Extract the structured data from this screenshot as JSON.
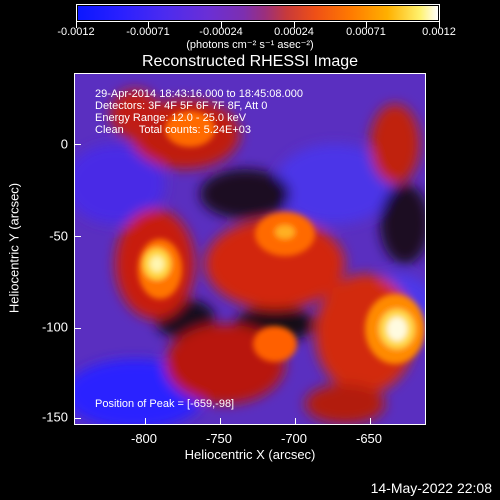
{
  "colorbar": {
    "ticks": [
      "-0.0012",
      "-0.00071",
      "-0.00024",
      "0.00024",
      "0.00071",
      "0.0012"
    ],
    "units": "(photons cm⁻² s⁻¹ asec⁻²)"
  },
  "title": "Reconstructed RHESSI Image",
  "info": {
    "time_range": "29-Apr-2014 18:43:16.000 to 18:45:08.000",
    "detectors": "Detectors: 3F 4F 5F 6F 7F 8F, Att 0",
    "energy": "Energy Range: 12.0 - 25.0 keV",
    "method": "Clean     Total counts: 5.24E+03",
    "peak": "Position of Peak = [-659,-98]"
  },
  "axes": {
    "xlabel": "Heliocentric X (arcsec)",
    "ylabel": "Heliocentric Y (arcsec)",
    "xticks": [
      "-800",
      "-750",
      "-700",
      "-650"
    ],
    "yticks": [
      "0",
      "-50",
      "-100",
      "-150"
    ]
  },
  "footer_date": "14-May-2022 22:08",
  "colors": {
    "background": "#000000",
    "text": "#ffffff",
    "low": "#1e1eff",
    "mid": "#7a2fb0",
    "high": "#ffffff"
  }
}
